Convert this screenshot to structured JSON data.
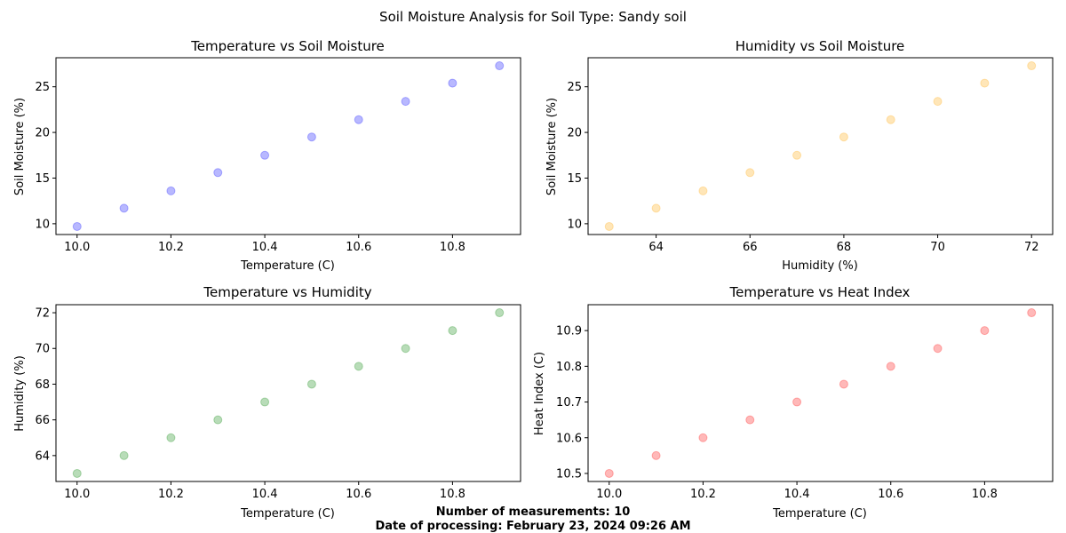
{
  "figure": {
    "title": "Soil Moisture Analysis for Soil Type: Sandy soil",
    "footer_count": "Number of measurements: 10",
    "footer_date": "Date of processing: February 23, 2024 09:26 AM"
  },
  "chart_data": [
    {
      "type": "scatter",
      "title": "Temperature vs Soil Moisture",
      "xlabel": "Temperature (C)",
      "ylabel": "Soil Moisture (%)",
      "color": "#0000ff",
      "x": [
        10.0,
        10.1,
        10.2,
        10.3,
        10.4,
        10.5,
        10.6,
        10.7,
        10.8,
        10.9
      ],
      "y": [
        9.7,
        11.7,
        13.6,
        15.6,
        17.5,
        19.5,
        21.4,
        23.4,
        25.4,
        27.3
      ],
      "xlim": [
        9.955,
        10.945
      ],
      "ylim": [
        8.82,
        28.18
      ],
      "xticks": [
        10.0,
        10.2,
        10.4,
        10.6,
        10.8
      ],
      "xtick_labels": [
        "10.0",
        "10.2",
        "10.4",
        "10.6",
        "10.8"
      ],
      "yticks": [
        10,
        15,
        20,
        25
      ],
      "ytick_labels": [
        "10",
        "15",
        "20",
        "25"
      ],
      "grid": false
    },
    {
      "type": "scatter",
      "title": "Humidity vs Soil Moisture",
      "xlabel": "Humidity (%)",
      "ylabel": "Soil Moisture (%)",
      "color": "#ffa500",
      "x": [
        63,
        64,
        65,
        66,
        67,
        68,
        69,
        70,
        71,
        72
      ],
      "y": [
        9.7,
        11.7,
        13.6,
        15.6,
        17.5,
        19.5,
        21.4,
        23.4,
        25.4,
        27.3
      ],
      "xlim": [
        62.55,
        72.45
      ],
      "ylim": [
        8.82,
        28.18
      ],
      "xticks": [
        64,
        66,
        68,
        70,
        72
      ],
      "xtick_labels": [
        "64",
        "66",
        "68",
        "70",
        "72"
      ],
      "yticks": [
        10,
        15,
        20,
        25
      ],
      "ytick_labels": [
        "10",
        "15",
        "20",
        "25"
      ],
      "grid": false
    },
    {
      "type": "scatter",
      "title": "Temperature vs Humidity",
      "xlabel": "Temperature (C)",
      "ylabel": "Humidity (%)",
      "color": "#008000",
      "x": [
        10.0,
        10.1,
        10.2,
        10.3,
        10.4,
        10.5,
        10.6,
        10.7,
        10.8,
        10.9
      ],
      "y": [
        63,
        64,
        65,
        66,
        67,
        68,
        69,
        70,
        71,
        72
      ],
      "xlim": [
        9.955,
        10.945
      ],
      "ylim": [
        62.55,
        72.45
      ],
      "xticks": [
        10.0,
        10.2,
        10.4,
        10.6,
        10.8
      ],
      "xtick_labels": [
        "10.0",
        "10.2",
        "10.4",
        "10.6",
        "10.8"
      ],
      "yticks": [
        64,
        66,
        68,
        70,
        72
      ],
      "ytick_labels": [
        "64",
        "66",
        "68",
        "70",
        "72"
      ],
      "grid": false
    },
    {
      "type": "scatter",
      "title": "Temperature vs Heat Index",
      "xlabel": "Temperature (C)",
      "ylabel": "Heat Index (C)",
      "color": "#ff0000",
      "x": [
        10.0,
        10.1,
        10.2,
        10.3,
        10.4,
        10.5,
        10.6,
        10.7,
        10.8,
        10.9
      ],
      "y": [
        10.5,
        10.55,
        10.6,
        10.65,
        10.7,
        10.75,
        10.8,
        10.85,
        10.9,
        10.95
      ],
      "xlim": [
        9.955,
        10.945
      ],
      "ylim": [
        10.4775,
        10.9725
      ],
      "xticks": [
        10.0,
        10.2,
        10.4,
        10.6,
        10.8
      ],
      "xtick_labels": [
        "10.0",
        "10.2",
        "10.4",
        "10.6",
        "10.8"
      ],
      "yticks": [
        10.5,
        10.6,
        10.7,
        10.8,
        10.9
      ],
      "ytick_labels": [
        "10.5",
        "10.6",
        "10.7",
        "10.8",
        "10.9"
      ],
      "grid": false
    }
  ]
}
